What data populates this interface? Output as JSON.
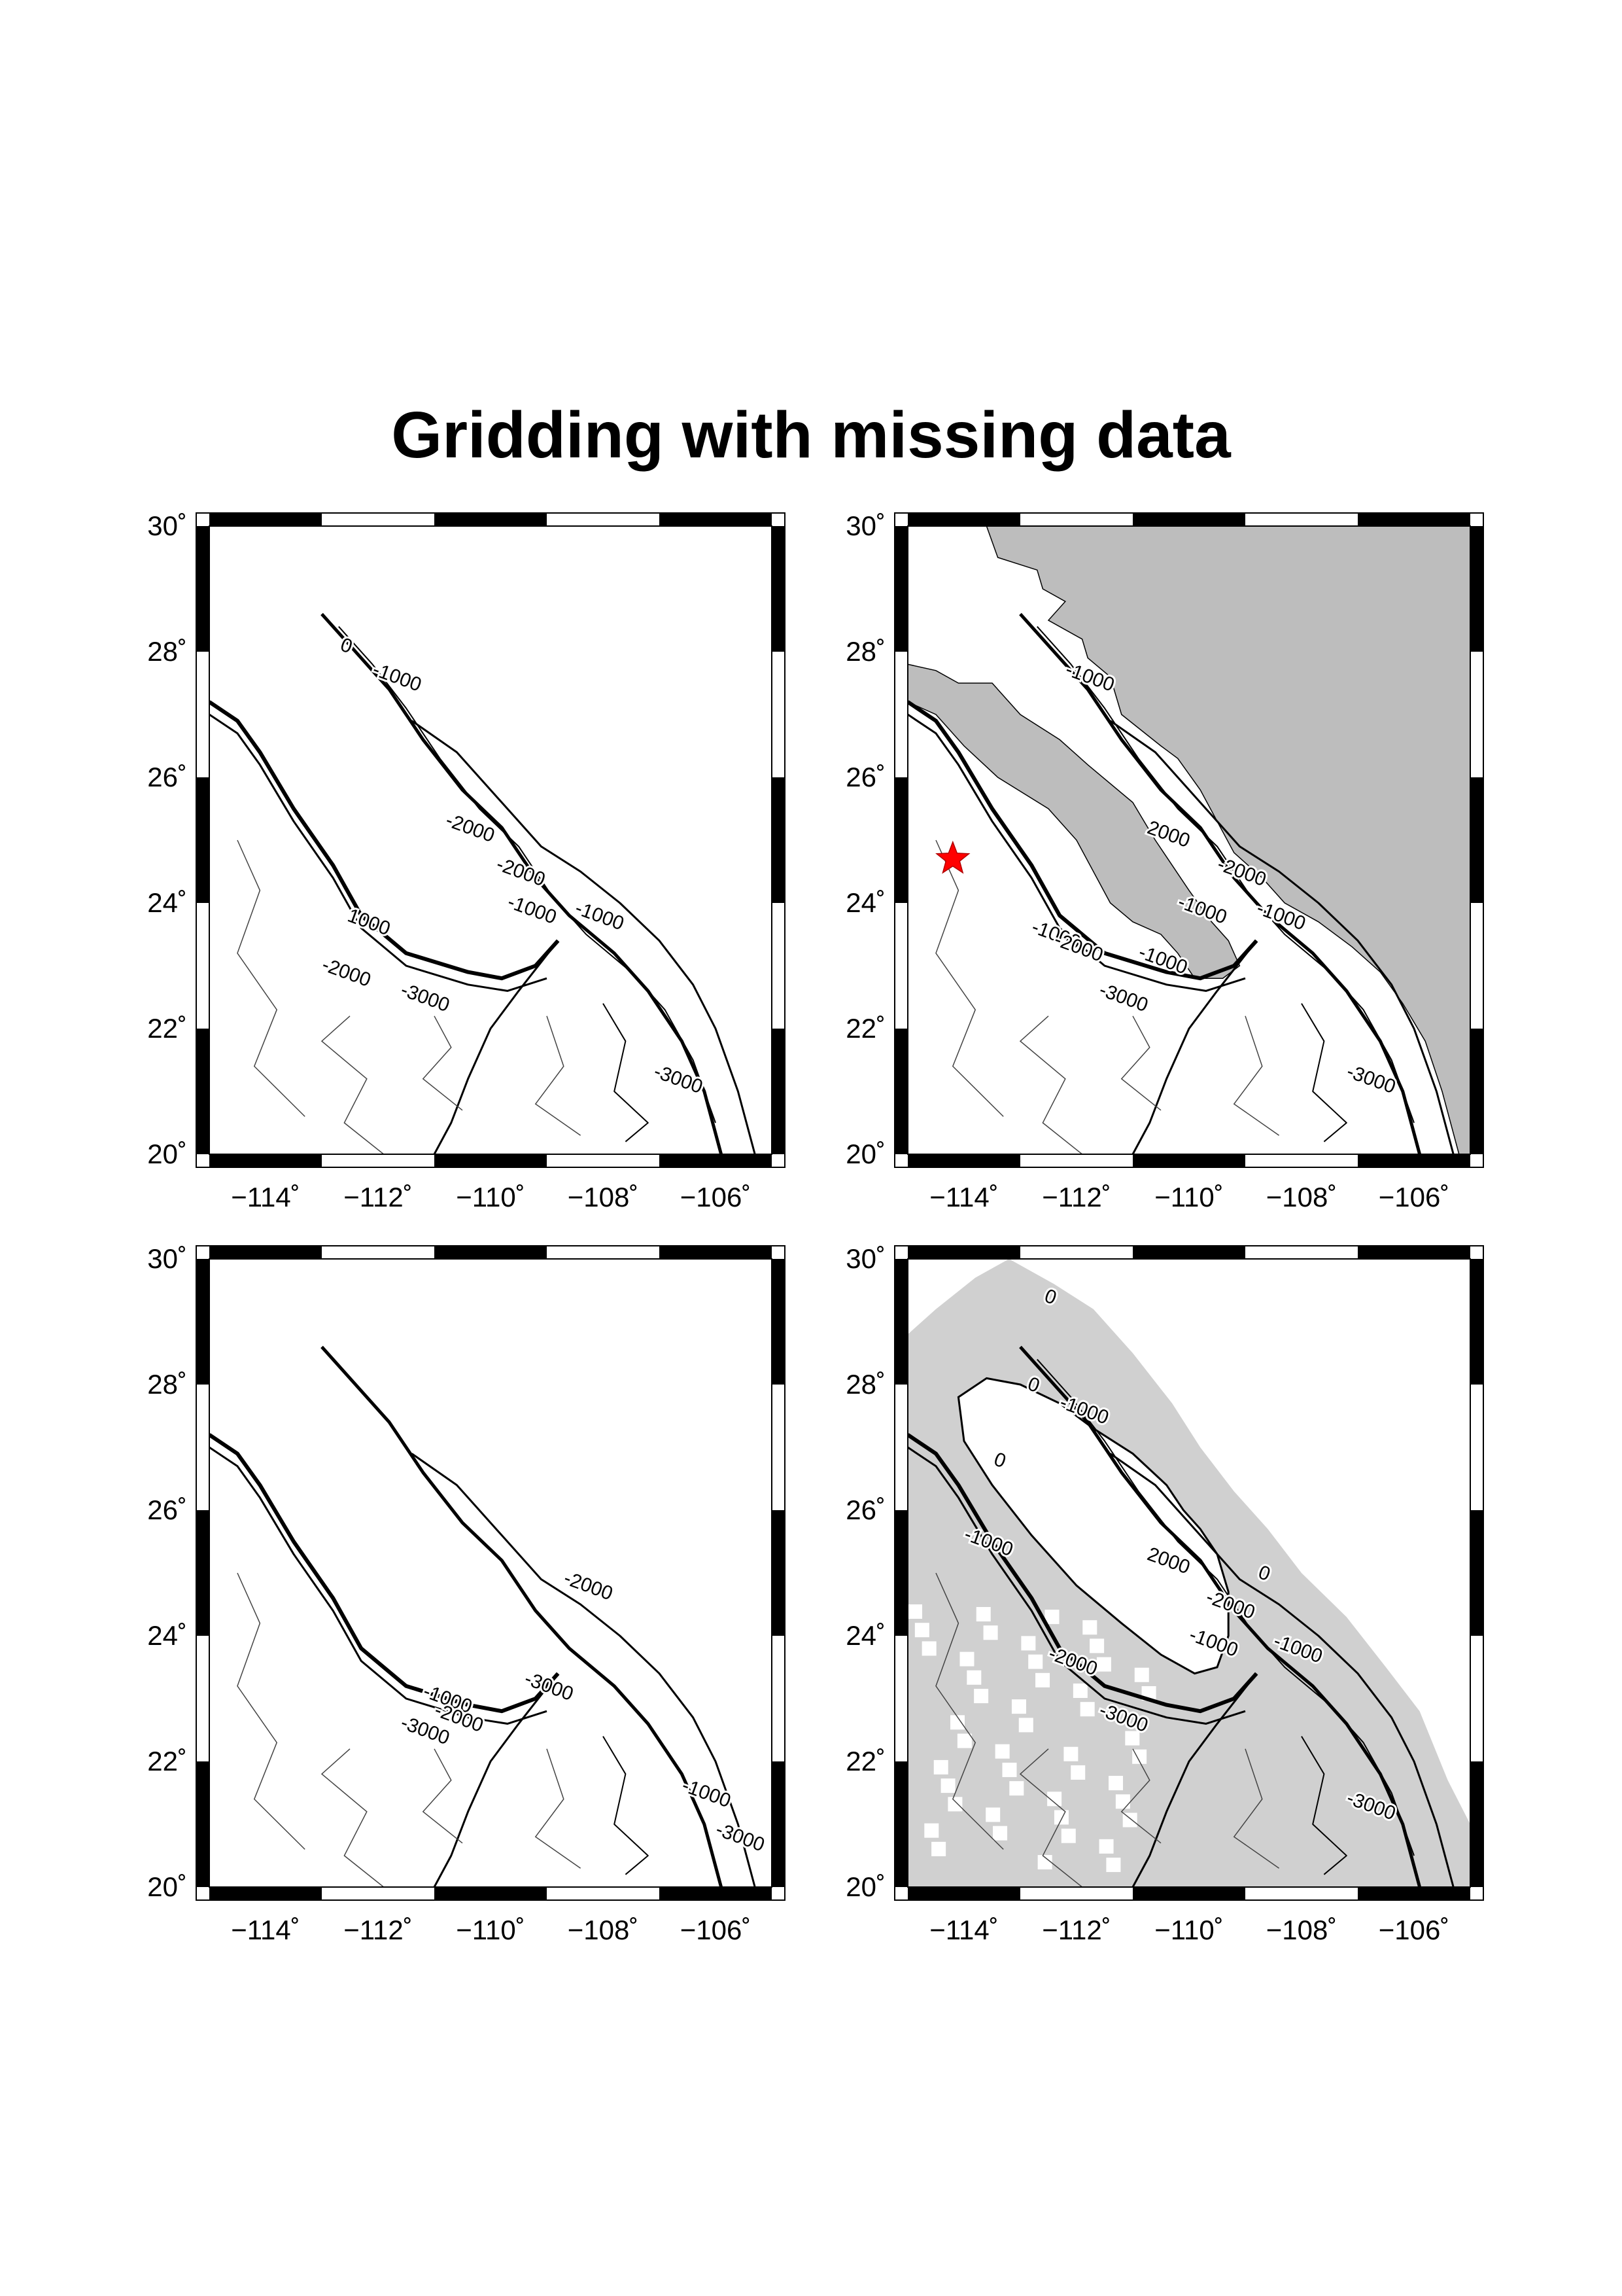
{
  "title": "Gridding with missing data",
  "map_frame": {
    "lon_range": [
      -115,
      -105
    ],
    "lat_range": [
      20,
      30
    ],
    "lon_tick_labels": [
      "−114˚",
      "−112˚",
      "−110˚",
      "−108˚",
      "−106˚"
    ],
    "lat_tick_labels": [
      "20˚",
      "22˚",
      "24˚",
      "26˚",
      "28˚",
      "30˚"
    ]
  },
  "colors": {
    "land": "#bdbdbd",
    "filled_grid": "#d0d0d0",
    "marker": "#ff0000",
    "contour": "#000000"
  },
  "panels": [
    {
      "id": "raw-data",
      "contour_labels": [
        "0",
        "-1000",
        "-2000",
        "-2000",
        "-1000",
        "-1000",
        "1000",
        "-2000",
        "-3000",
        "-3000"
      ]
    },
    {
      "id": "land-masked",
      "marker": {
        "icon": "star-icon",
        "lon": -114.2,
        "lat": 24.7
      },
      "contour_labels": [
        "-1000",
        "2000",
        "-2000",
        "-1000",
        "-1000",
        "-1000",
        "-2000",
        "-1000",
        "-3000",
        "-3000"
      ]
    },
    {
      "id": "missing-data",
      "contour_labels": [
        "-1000",
        "-2000",
        "-3000",
        "-2000",
        "-3000",
        "-1000",
        "-3000"
      ]
    },
    {
      "id": "filled-grid",
      "contour_labels": [
        "0",
        "0",
        "-1000",
        "0",
        "-1000",
        "2000",
        "0",
        "-2000",
        "-1000",
        "-1000",
        "-2000",
        "-3000",
        "-3000"
      ]
    }
  ]
}
